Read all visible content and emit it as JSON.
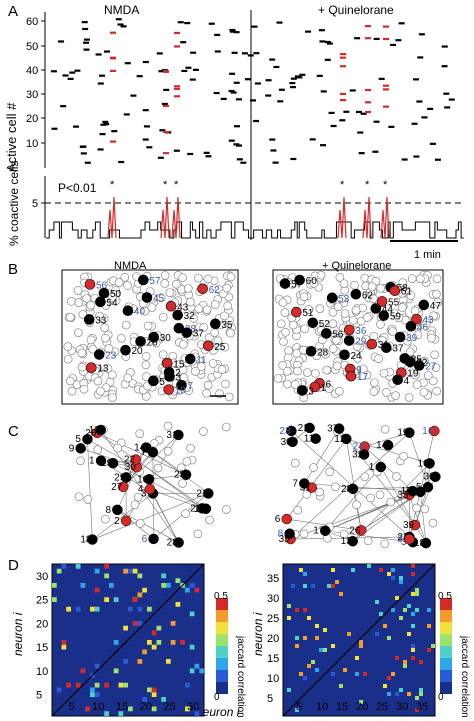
{
  "panels": {
    "A": "A",
    "B": "B",
    "C": "C",
    "D": "D"
  },
  "panelA": {
    "raster": {
      "ylabel": "Active cell #",
      "yticks": [
        "60",
        "50",
        "40",
        "30",
        "20",
        "10"
      ],
      "cond_left": "NMDA",
      "cond_right": "+ Quinelorane"
    },
    "coactive": {
      "ylabel": "% coactive cells",
      "ytick": "5",
      "pvalue": "P<0.01",
      "star": "*",
      "scalebar": "1 min"
    }
  },
  "panelB": {
    "left_title": "NMDA",
    "right_title": "+ Quinelorane",
    "left_labels": [
      "57",
      "56",
      "62",
      "50",
      "45",
      "54",
      "43",
      "40",
      "32",
      "33",
      "35",
      "38",
      "37",
      "30",
      "26",
      "25",
      "20",
      "23",
      "11",
      "15",
      "13",
      "2",
      "3",
      "5",
      "7",
      "10"
    ],
    "right_labels": [
      "60",
      "57",
      "58",
      "61",
      "62",
      "53",
      "55",
      "47",
      "44",
      "51",
      "59",
      "43",
      "52",
      "46",
      "36",
      "56",
      "39",
      "29",
      "31",
      "37",
      "28",
      "24",
      "25",
      "22",
      "27",
      "9",
      "19",
      "17",
      "4",
      "6",
      "1",
      "3"
    ]
  },
  "panelC": {
    "left_labels": [
      "30",
      "29",
      "31",
      "28",
      "27",
      "25",
      "22",
      "23",
      "18",
      "21",
      "19",
      "20",
      "14",
      "15",
      "12",
      "10",
      "9",
      "7",
      "8",
      "5",
      "6",
      "1",
      "2",
      "3",
      "4"
    ],
    "right_labels": [
      "37",
      "36",
      "34",
      "35",
      "33",
      "39",
      "26",
      "24",
      "32",
      "30",
      "28",
      "31",
      "23",
      "18",
      "21",
      "22",
      "17",
      "19",
      "14",
      "15",
      "13",
      "16",
      "10",
      "12",
      "8",
      "5",
      "6",
      "11",
      "7",
      "1",
      "3",
      "2"
    ]
  },
  "panelD": {
    "ylabel": "neuron i",
    "xlabel": "neuron i",
    "left_ticks": [
      "5",
      "10",
      "15",
      "20",
      "25",
      "30"
    ],
    "right_ticks": [
      "5",
      "10",
      "15",
      "20",
      "25",
      "30",
      "35"
    ],
    "colorbar_label": "jaccard correlation",
    "colorbar_max": "0.5",
    "colorbar_min": "0"
  },
  "colors": {
    "active": "#000000",
    "coactive": "#d42a2a",
    "blue_label": "#3b5ba8",
    "matrix_bg": "#1a2f8a"
  }
}
